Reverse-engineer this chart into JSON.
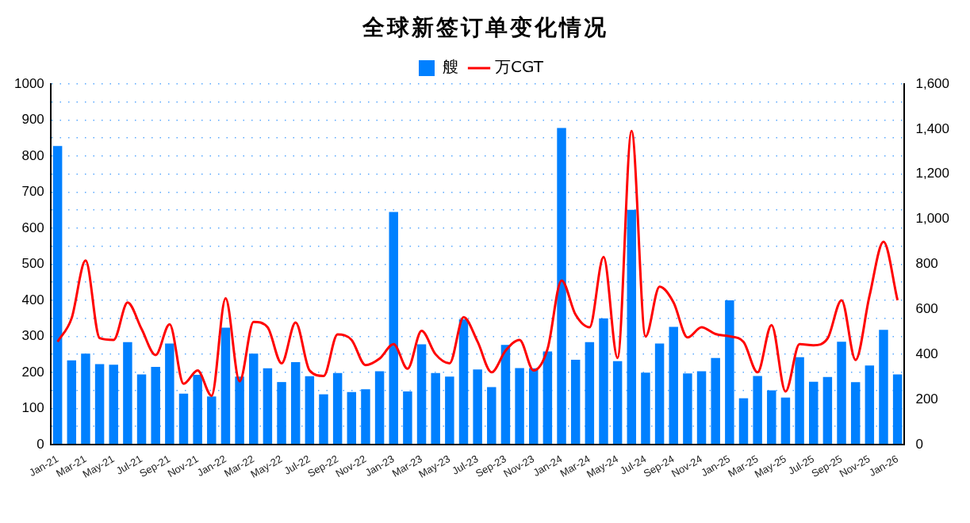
{
  "chart_data": {
    "type": "bar",
    "title": "全球新签订单变化情况",
    "categories": [
      "Jan-21",
      null,
      "Mar-21",
      null,
      "May-21",
      null,
      "Jul-21",
      null,
      "Sep-21",
      null,
      "Nov-21",
      null,
      "Jan-22",
      null,
      "Mar-22",
      null,
      "May-22",
      null,
      "Jul-22",
      null,
      "Sep-22",
      null,
      "Nov-22",
      null,
      "Jan-23",
      null,
      "Mar-23",
      null,
      "May-23",
      null,
      "Jul-23",
      null,
      "Sep-23",
      null,
      "Nov-23",
      null,
      "Jan-24",
      null,
      "Mar-24",
      null,
      "May-24",
      null,
      "Jul-24",
      null,
      "Sep-24",
      null,
      "Nov-24",
      null,
      "Jan-25",
      null,
      "Mar-25",
      null,
      "May-25",
      null,
      "Jul-25",
      null,
      "Sep-25",
      null,
      "Nov-25",
      null,
      "Jan-26"
    ],
    "series": [
      {
        "name": "艘",
        "color": "#0080ff",
        "values": [
          828,
          233,
          252,
          223,
          221,
          284,
          194,
          215,
          280,
          141,
          193,
          133,
          324,
          188,
          252,
          211,
          173,
          228,
          189,
          139,
          198,
          145,
          153,
          203,
          645,
          147,
          278,
          198,
          188,
          347,
          208,
          159,
          276,
          212,
          211,
          258,
          878,
          235,
          284,
          350,
          231,
          651,
          199,
          280,
          326,
          197,
          203,
          240,
          400,
          128,
          190,
          150,
          130,
          242,
          174,
          187,
          285,
          173,
          219,
          318,
          194
        ]
      },
      {
        "name": "万CGT",
        "type": "line",
        "axis": "y2",
        "color": "#ff0000",
        "values": [
          456,
          560,
          816,
          472,
          464,
          630,
          512,
          397,
          533,
          269,
          328,
          216,
          648,
          280,
          544,
          520,
          360,
          541,
          328,
          304,
          488,
          464,
          352,
          381,
          445,
          336,
          504,
          400,
          360,
          565,
          456,
          320,
          416,
          464,
          328,
          424,
          728,
          576,
          520,
          832,
          384,
          1392,
          479,
          700,
          630,
          475,
          520,
          490,
          480,
          455,
          320,
          530,
          235,
          445,
          440,
          470,
          640,
          375,
          660,
          900,
          640
        ]
      }
    ],
    "ylim": [
      0,
      1000
    ],
    "yticks": [
      0,
      {
        "value": 50,
        "label": null
      },
      100,
      {
        "value": 150,
        "label": null
      },
      200,
      {
        "value": 250,
        "label": null
      },
      300,
      {
        "value": 350,
        "label": null
      },
      400,
      {
        "value": 450,
        "label": null
      },
      500,
      {
        "value": 550,
        "label": null
      },
      600,
      {
        "value": 650,
        "label": null
      },
      700,
      {
        "value": 750,
        "label": null
      },
      800,
      {
        "value": 850,
        "label": null
      },
      900,
      {
        "value": 950,
        "label": null
      },
      1000
    ],
    "y2lim": [
      0,
      1600
    ],
    "y2ticks": [
      0,
      {
        "value": 200,
        "label": "200"
      },
      {
        "value": 400,
        "label": "400"
      },
      {
        "value": 600,
        "label": "600"
      },
      {
        "value": 800,
        "label": "800"
      },
      {
        "value": 1000,
        "label": "1,000"
      },
      {
        "value": 1200,
        "label": "1,200"
      },
      {
        "value": 1400,
        "label": "1,400"
      },
      {
        "value": 1600,
        "label": "1,600"
      }
    ],
    "grid": "y",
    "legend": "top",
    "marker": "none",
    "line_style": "solid"
  }
}
